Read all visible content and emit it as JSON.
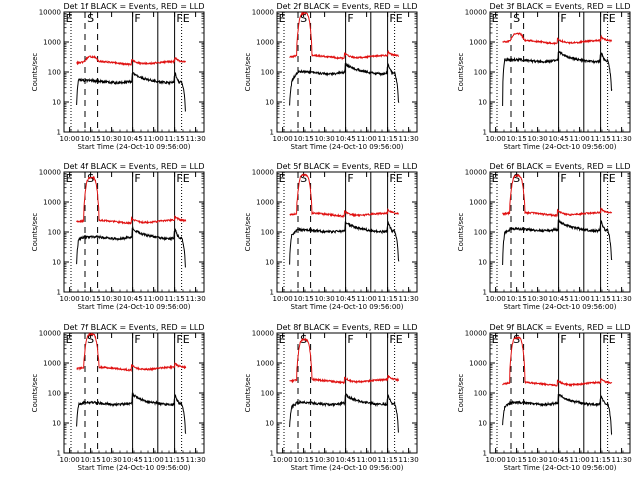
{
  "chart_data": {
    "type": "line",
    "panels_per_row": 3,
    "y_scale": "log",
    "ylim": [
      1,
      10000
    ],
    "y_ticks": [
      {
        "value": 1,
        "label": "1"
      },
      {
        "value": 10,
        "label": "10"
      },
      {
        "value": 100,
        "label": "100"
      },
      {
        "value": 1000,
        "label": "1000"
      },
      {
        "value": 10000,
        "label": "10000"
      }
    ],
    "xlim": [
      "09:56:00",
      "11:36:00"
    ],
    "x_ticks": [
      "10:00",
      "10:15",
      "10:30",
      "10:45",
      "11:00",
      "11:15",
      "11:30"
    ],
    "xlabel": "Start Time (24-Oct-10 09:56:00)",
    "ylabel": "Counts/sec",
    "series_colors": {
      "events": "#000000",
      "lld": "#e01010"
    },
    "markers": {
      "dotted": [
        "10:01",
        "11:20"
      ],
      "dashed": [
        "10:11",
        "10:20"
      ],
      "solid": [
        "10:45",
        "11:03",
        "11:15"
      ]
    },
    "panels": [
      {
        "title": "Det 1f BLACK = Events, RED = LLD",
        "lld_base": 200,
        "lld_peak": 300,
        "ev_base": 48,
        "ev_peak": 60,
        "ev_pre": 60
      },
      {
        "title": "Det 2f BLACK = Events, RED = LLD",
        "lld_base": 320,
        "lld_peak": 9000,
        "ev_base": 95,
        "ev_peak": 110,
        "ev_pre": 30
      },
      {
        "title": "Det 3f BLACK = Events, RED = LLD",
        "lld_base": 1000,
        "lld_peak": 1800,
        "ev_base": 240,
        "ev_peak": 260,
        "ev_pre": 250
      },
      {
        "title": "Det 4f BLACK = Events, RED = LLD",
        "lld_base": 220,
        "lld_peak": 6500,
        "ev_base": 65,
        "ev_peak": 85,
        "ev_pre": 55
      },
      {
        "title": "Det 5f BLACK = Events, RED = LLD",
        "lld_base": 380,
        "lld_peak": 8000,
        "ev_base": 110,
        "ev_peak": 120,
        "ev_pre": 70
      },
      {
        "title": "Det 6f BLACK = Events, RED = LLD",
        "lld_base": 400,
        "lld_peak": 7500,
        "ev_base": 120,
        "ev_peak": 130,
        "ev_pre": 80
      },
      {
        "title": "Det 7f BLACK = Events, RED = LLD",
        "lld_base": 650,
        "lld_peak": 9000,
        "ev_base": 45,
        "ev_peak": 55,
        "ev_pre": 40
      },
      {
        "title": "Det 8f BLACK = Events, RED = LLD",
        "lld_base": 250,
        "lld_peak": 6000,
        "ev_base": 45,
        "ev_peak": 60,
        "ev_pre": 30
      },
      {
        "title": "Det 9f BLACK = Events, RED = LLD",
        "lld_base": 200,
        "lld_peak": 7000,
        "ev_base": 45,
        "ev_peak": 55,
        "ev_pre": 30
      }
    ],
    "annotations": [
      "E",
      "S",
      "F",
      "FE"
    ]
  }
}
